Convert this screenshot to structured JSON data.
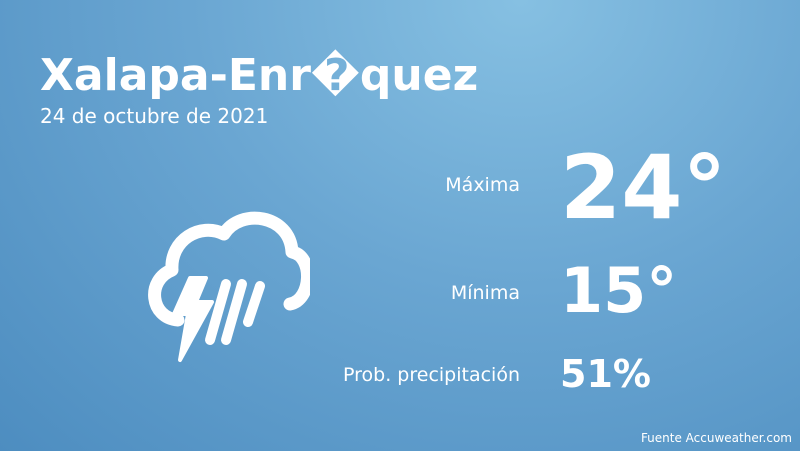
{
  "header": {
    "title": "Xalapa-Enr�quez",
    "date": "24 de octubre de 2021"
  },
  "stats": [
    {
      "label": "Máxima",
      "value": "24°"
    },
    {
      "label": "Mínima",
      "value": "15°"
    },
    {
      "label": "Prob. precipitación",
      "value": "51%"
    }
  ],
  "source": "Fuente Accuweather.com"
}
